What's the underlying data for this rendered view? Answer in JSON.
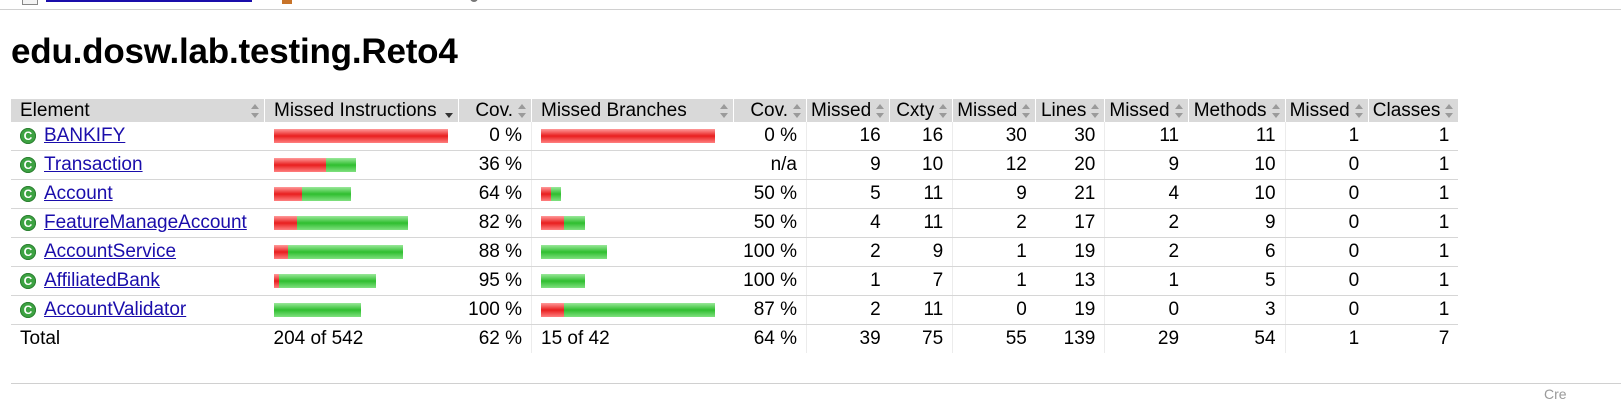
{
  "page": {
    "title": "edu.dosw.lab.testing.Reto4",
    "footer_partial": "Cre"
  },
  "colors": {
    "missed": "#e81e1e",
    "covered": "#2fbe2f",
    "header_bg": "#d9d9d9",
    "link": "#1a0dab"
  },
  "table": {
    "headers": {
      "element": "Element",
      "missed_instructions": "Missed Instructions",
      "cov1": "Cov.",
      "missed_branches": "Missed Branches",
      "cov2": "Cov.",
      "missed_cxty": "Missed",
      "cxty": "Cxty",
      "missed_lines": "Missed",
      "lines": "Lines",
      "missed_methods": "Missed",
      "methods": "Methods",
      "missed_classes": "Missed",
      "classes": "Classes"
    },
    "rows": [
      {
        "name": "BANKIFY",
        "icon": "class-icon",
        "instr_cov": "0 %",
        "instr_missed": 1.0,
        "instr_covered": 0.0,
        "branch_cov": "0 %",
        "branch_missed": 1.0,
        "branch_covered": 0.0,
        "missed_cxty": "16",
        "cxty": "16",
        "missed_lines": "30",
        "lines": "30",
        "missed_methods": "11",
        "methods": "11",
        "missed_classes": "1",
        "classes": "1"
      },
      {
        "name": "Transaction",
        "icon": "class-icon",
        "instr_cov": "36 %",
        "instr_missed": 0.3,
        "instr_covered": 0.17,
        "branch_cov": "n/a",
        "branch_missed": 0,
        "branch_covered": 0,
        "missed_cxty": "9",
        "cxty": "10",
        "missed_lines": "12",
        "lines": "20",
        "missed_methods": "9",
        "methods": "10",
        "missed_classes": "0",
        "classes": "1"
      },
      {
        "name": "Account",
        "icon": "class-icon",
        "instr_cov": "64 %",
        "instr_missed": 0.16,
        "instr_covered": 0.28,
        "branch_cov": "50 %",
        "branch_missed": 0.06,
        "branch_covered": 0.06,
        "missed_cxty": "5",
        "cxty": "11",
        "missed_lines": "9",
        "lines": "21",
        "missed_methods": "4",
        "methods": "10",
        "missed_classes": "0",
        "classes": "1"
      },
      {
        "name": "FeatureManageAccount",
        "icon": "class-icon",
        "instr_cov": "82 %",
        "instr_missed": 0.13,
        "instr_covered": 0.64,
        "branch_cov": "50 %",
        "branch_missed": 0.13,
        "branch_covered": 0.12,
        "missed_cxty": "4",
        "cxty": "11",
        "missed_lines": "2",
        "lines": "17",
        "missed_methods": "2",
        "methods": "9",
        "missed_classes": "0",
        "classes": "1"
      },
      {
        "name": "AccountService",
        "icon": "class-icon",
        "instr_cov": "88 %",
        "instr_missed": 0.08,
        "instr_covered": 0.66,
        "branch_cov": "100 %",
        "branch_missed": 0,
        "branch_covered": 0.38,
        "missed_cxty": "2",
        "cxty": "9",
        "missed_lines": "1",
        "lines": "19",
        "missed_methods": "2",
        "methods": "6",
        "missed_classes": "0",
        "classes": "1"
      },
      {
        "name": "AffiliatedBank",
        "icon": "class-icon",
        "instr_cov": "95 %",
        "instr_missed": 0.03,
        "instr_covered": 0.56,
        "branch_cov": "100 %",
        "branch_missed": 0,
        "branch_covered": 0.25,
        "missed_cxty": "1",
        "cxty": "7",
        "missed_lines": "1",
        "lines": "13",
        "missed_methods": "1",
        "methods": "5",
        "missed_classes": "0",
        "classes": "1"
      },
      {
        "name": "AccountValidator",
        "icon": "class-icon",
        "instr_cov": "100 %",
        "instr_missed": 0,
        "instr_covered": 0.5,
        "branch_cov": "87 %",
        "branch_missed": 0.13,
        "branch_covered": 0.87,
        "missed_cxty": "2",
        "cxty": "11",
        "missed_lines": "0",
        "lines": "19",
        "missed_methods": "0",
        "methods": "3",
        "missed_classes": "0",
        "classes": "1"
      }
    ],
    "total": {
      "label": "Total",
      "instr": "204 of 542",
      "instr_cov": "62 %",
      "branches": "15 of 42",
      "branch_cov": "64 %",
      "missed_cxty": "39",
      "cxty": "75",
      "missed_lines": "55",
      "lines": "139",
      "missed_methods": "29",
      "methods": "54",
      "missed_classes": "1",
      "classes": "7"
    }
  }
}
